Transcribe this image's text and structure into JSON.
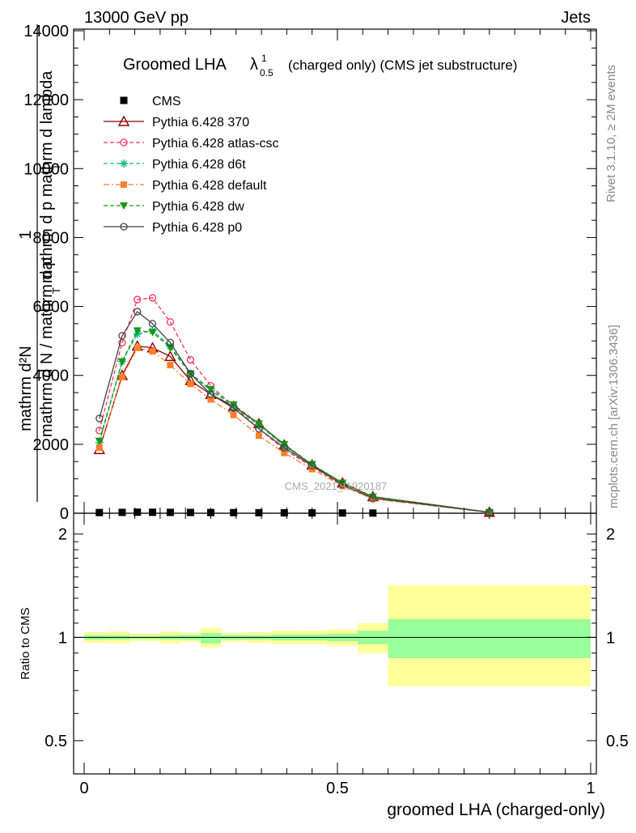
{
  "header": {
    "left": "13000 GeV pp",
    "right": "Jets"
  },
  "plot_title": {
    "main": "Groomed LHA",
    "symbol": "λ",
    "sup": "1",
    "sub": "0.5",
    "suffix": "(charged only) (CMS jet substructure)"
  },
  "ylabel_main": {
    "numerator": "mathrm d²N",
    "denominator": "mathrm d p  mathrm d lambda",
    "denominator_sub": "T",
    "prefix": "1",
    "prefix_den": "mathrm d N / mathrm d p",
    "prefix_den_sub": "T"
  },
  "ylabel_ratio": "Ratio to CMS",
  "xlabel": "groomed LHA (charged-only)",
  "watermark": "CMS_2021_I1920187",
  "side_labels": {
    "rivet": "Rivet 3.1.10, ≥ 2M events",
    "mcplots": "mcplots.cern.ch [arXiv:1306.3436]"
  },
  "legend": [
    {
      "label": "CMS",
      "color": "#000000",
      "marker": "square",
      "dash": "none"
    },
    {
      "label": "Pythia 6.428 370",
      "color": "#8b0000",
      "marker": "triangle-open",
      "dash": "solid"
    },
    {
      "label": "Pythia 6.428 atlas-csc",
      "color": "#ff3355",
      "marker": "circle-open",
      "dash": "dashed"
    },
    {
      "label": "Pythia 6.428 d6t",
      "color": "#11bb88",
      "marker": "star",
      "dash": "dashed"
    },
    {
      "label": "Pythia 6.428 default",
      "color": "#ff7f2a",
      "marker": "square-filled",
      "dash": "dashdot"
    },
    {
      "label": "Pythia 6.428 dw",
      "color": "#119911",
      "marker": "triangle-down-filled",
      "dash": "dashed"
    },
    {
      "label": "Pythia 6.428 p0",
      "color": "#444444",
      "marker": "circle-open",
      "dash": "solid"
    }
  ],
  "chart_data": {
    "type": "line",
    "xlim": [
      0,
      1
    ],
    "ylim": [
      0,
      14000
    ],
    "ratio_ylim": [
      0.4,
      2.3
    ],
    "x_ticks": [
      {
        "value": 0,
        "label": "0"
      },
      {
        "value": 0.5,
        "label": "0.5"
      },
      {
        "value": 1,
        "label": "1"
      }
    ],
    "y_ticks": [
      {
        "value": 0,
        "label": "0"
      },
      {
        "value": 2000,
        "label": "2000"
      },
      {
        "value": 4000,
        "label": "4000"
      },
      {
        "value": 6000,
        "label": "6000"
      },
      {
        "value": 8000,
        "label": "8000"
      },
      {
        "value": 10000,
        "label": "10000"
      },
      {
        "value": 12000,
        "label": "12000"
      },
      {
        "value": 14000,
        "label": "14000"
      }
    ],
    "ratio_ticks": [
      {
        "value": 0.5,
        "label": "0.5"
      },
      {
        "value": 1,
        "label": "1"
      },
      {
        "value": 2,
        "label": "2"
      }
    ],
    "x": [
      0.03,
      0.075,
      0.105,
      0.135,
      0.17,
      0.21,
      0.25,
      0.295,
      0.345,
      0.395,
      0.45,
      0.51,
      0.57,
      0.8
    ],
    "series": [
      {
        "name": "CMS",
        "values": [
          20,
          25,
          30,
          28,
          25,
          22,
          20,
          18,
          15,
          12,
          10,
          8,
          5,
          1
        ]
      },
      {
        "name": "Pythia 6.428 370",
        "values": [
          1850,
          4000,
          4850,
          4800,
          4550,
          3850,
          3450,
          3100,
          2600,
          1980,
          1400,
          880,
          480,
          30
        ]
      },
      {
        "name": "Pythia 6.428 atlas-csc",
        "values": [
          2400,
          4950,
          6200,
          6250,
          5550,
          4450,
          3700,
          3100,
          2450,
          1850,
          1350,
          800,
          420,
          28
        ]
      },
      {
        "name": "Pythia 6.428 d6t",
        "values": [
          2050,
          4400,
          5200,
          5300,
          4850,
          4050,
          3550,
          3100,
          2550,
          1950,
          1400,
          860,
          460,
          30
        ]
      },
      {
        "name": "Pythia 6.428 default",
        "values": [
          1900,
          3950,
          4800,
          4700,
          4300,
          3750,
          3300,
          2850,
          2250,
          1750,
          1280,
          790,
          420,
          27
        ]
      },
      {
        "name": "Pythia 6.428 dw",
        "values": [
          2100,
          4400,
          5300,
          5250,
          4800,
          4050,
          3600,
          3150,
          2600,
          2000,
          1420,
          880,
          480,
          30
        ]
      },
      {
        "name": "Pythia 6.428 p0",
        "values": [
          2750,
          5150,
          5850,
          5500,
          4950,
          4050,
          3450,
          3050,
          2450,
          1900,
          1380,
          830,
          440,
          28
        ]
      }
    ],
    "ratio_bands": [
      {
        "x0": 0.0,
        "x1": 0.045,
        "inner": [
          0.985,
          1.015
        ],
        "outer": [
          0.965,
          1.035
        ]
      },
      {
        "x0": 0.045,
        "x1": 0.09,
        "inner": [
          0.985,
          1.015
        ],
        "outer": [
          0.96,
          1.04
        ]
      },
      {
        "x0": 0.09,
        "x1": 0.12,
        "inner": [
          0.99,
          1.01
        ],
        "outer": [
          0.975,
          1.025
        ]
      },
      {
        "x0": 0.12,
        "x1": 0.15,
        "inner": [
          0.99,
          1.01
        ],
        "outer": [
          0.975,
          1.025
        ]
      },
      {
        "x0": 0.15,
        "x1": 0.19,
        "inner": [
          0.985,
          1.015
        ],
        "outer": [
          0.96,
          1.04
        ]
      },
      {
        "x0": 0.19,
        "x1": 0.23,
        "inner": [
          0.985,
          1.015
        ],
        "outer": [
          0.97,
          1.03
        ]
      },
      {
        "x0": 0.23,
        "x1": 0.27,
        "inner": [
          0.96,
          1.03
        ],
        "outer": [
          0.935,
          1.065
        ]
      },
      {
        "x0": 0.27,
        "x1": 0.32,
        "inner": [
          0.985,
          1.015
        ],
        "outer": [
          0.97,
          1.03
        ]
      },
      {
        "x0": 0.32,
        "x1": 0.37,
        "inner": [
          0.985,
          1.015
        ],
        "outer": [
          0.965,
          1.035
        ]
      },
      {
        "x0": 0.37,
        "x1": 0.42,
        "inner": [
          0.98,
          1.02
        ],
        "outer": [
          0.955,
          1.045
        ]
      },
      {
        "x0": 0.42,
        "x1": 0.48,
        "inner": [
          0.98,
          1.02
        ],
        "outer": [
          0.955,
          1.045
        ]
      },
      {
        "x0": 0.48,
        "x1": 0.54,
        "inner": [
          0.975,
          1.025
        ],
        "outer": [
          0.945,
          1.055
        ]
      },
      {
        "x0": 0.54,
        "x1": 0.6,
        "inner": [
          0.955,
          1.045
        ],
        "outer": [
          0.9,
          1.1
        ]
      },
      {
        "x0": 0.6,
        "x1": 1.0,
        "inner": [
          0.87,
          1.13
        ],
        "outer": [
          0.72,
          1.42
        ]
      }
    ]
  }
}
